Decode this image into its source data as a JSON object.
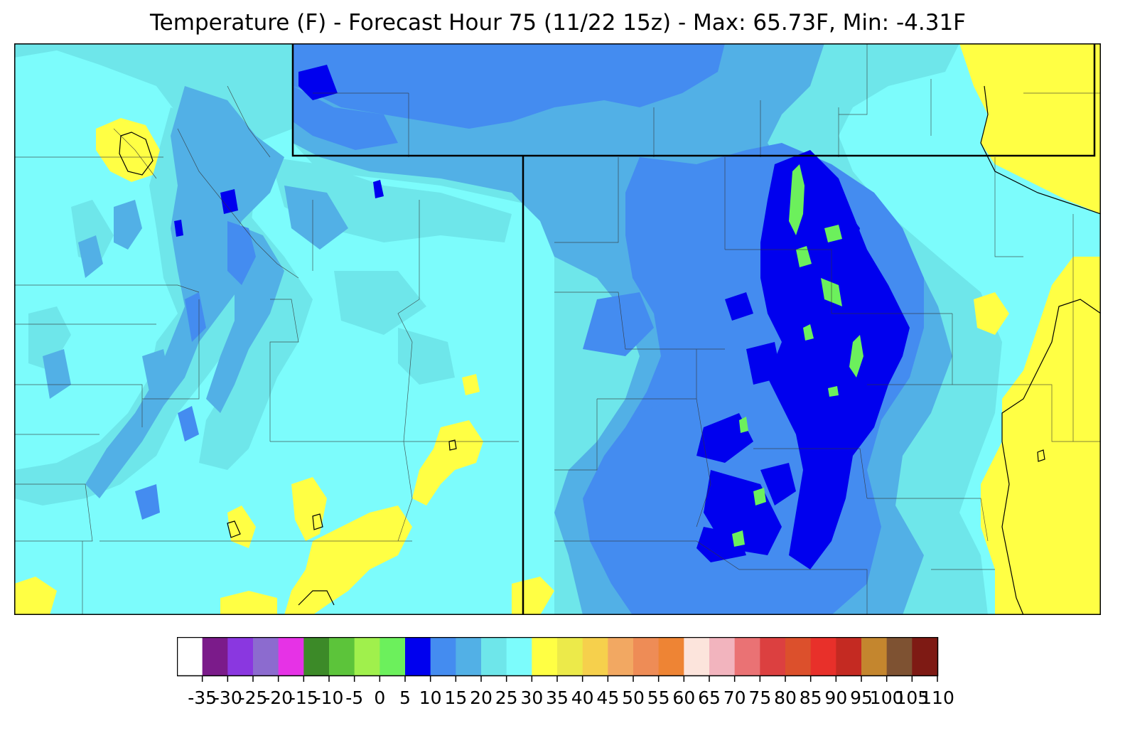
{
  "title": "Temperature (F) - Forecast Hour 75 (11/22 15z) - Max: 65.73F, Min: -4.31F",
  "colorbar": {
    "colors": [
      "#ffffff",
      "#7b1b8a",
      "#8a37e0",
      "#8c6bcf",
      "#e632e6",
      "#3c8a28",
      "#5cc43a",
      "#a0f04c",
      "#6cf05c",
      "#0000ee",
      "#448cf0",
      "#52b0e6",
      "#6ee6ea",
      "#7cfcfc",
      "#ffff44",
      "#ecea4a",
      "#f6d04c",
      "#f2a862",
      "#ee8c56",
      "#ee8434",
      "#fce4dc",
      "#f2b4be",
      "#ea7274",
      "#dc4040",
      "#dc502c",
      "#e8302a",
      "#c42a22",
      "#c4862e",
      "#7e5232",
      "#7e1a14"
    ],
    "ticks": [
      "-35",
      "-30",
      "-25",
      "-20",
      "-15",
      "-10",
      "-5",
      "0",
      "5",
      "10",
      "15",
      "20",
      "25",
      "30",
      "35",
      "40",
      "45",
      "50",
      "55",
      "60",
      "65",
      "70",
      "75",
      "80",
      "85",
      "90",
      "95",
      "100",
      "105",
      "110"
    ]
  },
  "map_colors": {
    "base": "#7cfcfc",
    "band_20_25": "#6ee6ea",
    "band_15_20": "#52b0e6",
    "band_10_15": "#448cf0",
    "band_5_10": "#0000ee",
    "band_0_5": "#6cf05c",
    "band_30_35": "#ffff44"
  }
}
